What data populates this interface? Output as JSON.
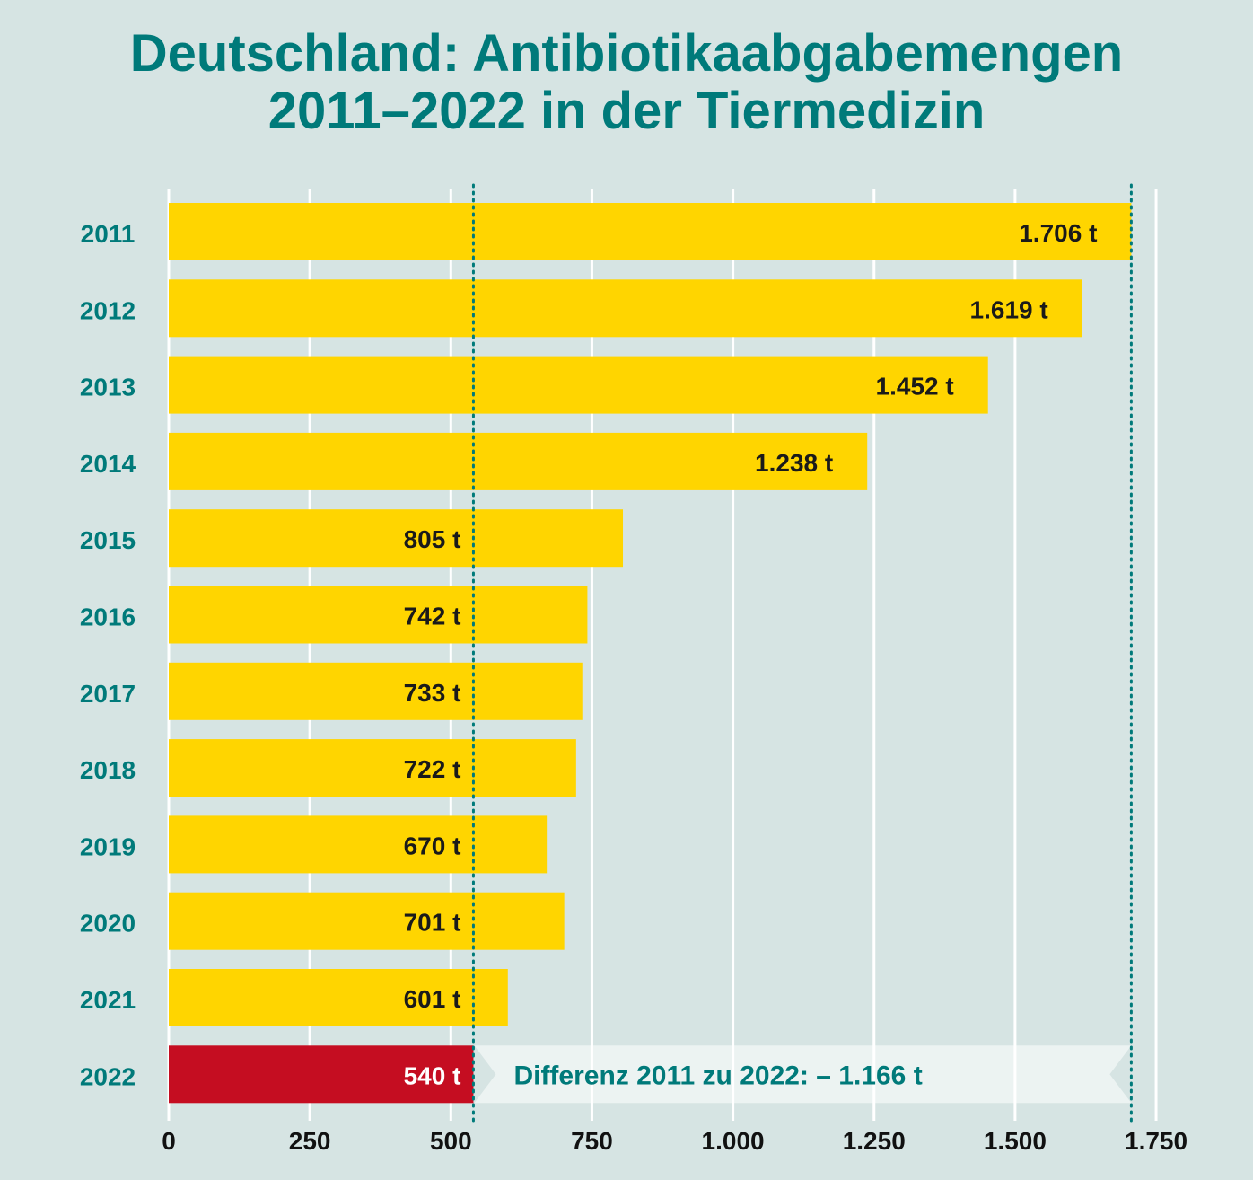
{
  "title_line1": "Deutschland: Antibiotikaabgabemengen",
  "title_line2": "2011–2022 in der Tiermedizin",
  "chart_data": {
    "type": "bar",
    "orientation": "horizontal",
    "categories": [
      "2011",
      "2012",
      "2013",
      "2014",
      "2015",
      "2016",
      "2017",
      "2018",
      "2019",
      "2020",
      "2021",
      "2022"
    ],
    "values": [
      1706,
      1619,
      1452,
      1238,
      805,
      742,
      733,
      722,
      670,
      701,
      601,
      540
    ],
    "value_labels": [
      "1.706 t",
      "1.619 t",
      "1.452 t",
      "1.238 t",
      "805 t",
      "742 t",
      "733 t",
      "722 t",
      "670 t",
      "701 t",
      "601 t",
      "540 t"
    ],
    "x_ticks": [
      0,
      250,
      500,
      750,
      1000,
      1250,
      1500,
      1750
    ],
    "x_tick_labels": [
      "0",
      "250",
      "500",
      "750",
      "1.000",
      "1.250",
      "1.500",
      "1.750"
    ],
    "xlim": [
      0,
      1750
    ],
    "grid": true,
    "reference_lines": [
      540,
      1706
    ],
    "highlight_category": "2022",
    "annotation": "Differenz 2011 zu 2022: – 1.166 t",
    "colors": {
      "background": "#d6e4e3",
      "bar": "#ffd500",
      "highlight_bar": "#c50d21",
      "accent": "#007a7a",
      "grid": "#ffffff"
    }
  }
}
